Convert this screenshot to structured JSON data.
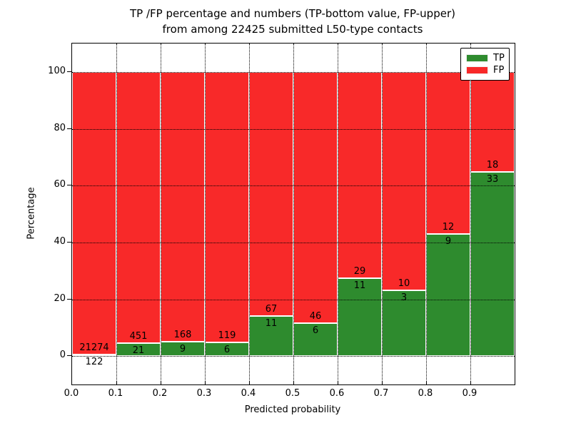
{
  "title": {
    "line1": "TP /FP percentage and numbers (TP-bottom value, FP-upper)",
    "line2": "from among 22425 submitted L50-type contacts"
  },
  "chart_data": {
    "type": "bar",
    "stacked": true,
    "normalized": "each bin scaled to 100%",
    "title": "TP /FP percentage and numbers (TP-bottom value, FP-upper) from among 22425 submitted L50-type contacts",
    "xlabel": "Predicted probability",
    "ylabel": "Percentage",
    "xlim": [
      0.0,
      1.0
    ],
    "ylim": [
      -10,
      110
    ],
    "xtick_labels": [
      "0.0",
      "0.1",
      "0.2",
      "0.3",
      "0.4",
      "0.5",
      "0.6",
      "0.7",
      "0.8",
      "0.9"
    ],
    "ytick_labels": [
      "0",
      "20",
      "40",
      "60",
      "80",
      "100"
    ],
    "grid": "dotted black, on",
    "bin_edges": [
      0.0,
      0.1,
      0.2,
      0.3,
      0.4,
      0.5,
      0.6,
      0.7,
      0.8,
      0.9,
      1.0
    ],
    "series": [
      {
        "name": "TP",
        "color": "#2e8b2e",
        "counts": [
          122,
          21,
          9,
          6,
          11,
          6,
          11,
          3,
          9,
          33
        ]
      },
      {
        "name": "FP",
        "color": "#f82929",
        "counts": [
          21274,
          451,
          168,
          119,
          67,
          46,
          29,
          10,
          12,
          18
        ]
      }
    ],
    "tp_percent_of_bin": [
      0.57,
      4.45,
      5.08,
      4.8,
      14.1,
      11.54,
      27.5,
      23.08,
      42.86,
      64.71
    ],
    "value_label_rule": "FP count printed just above TP/FP boundary, TP count just below",
    "legend": {
      "position": "upper right"
    },
    "colors": {
      "tp": "#2e8b2e",
      "fp": "#f82929",
      "bar_edge": "#ffffff",
      "grid": "#000000",
      "frame": "#000000"
    }
  }
}
